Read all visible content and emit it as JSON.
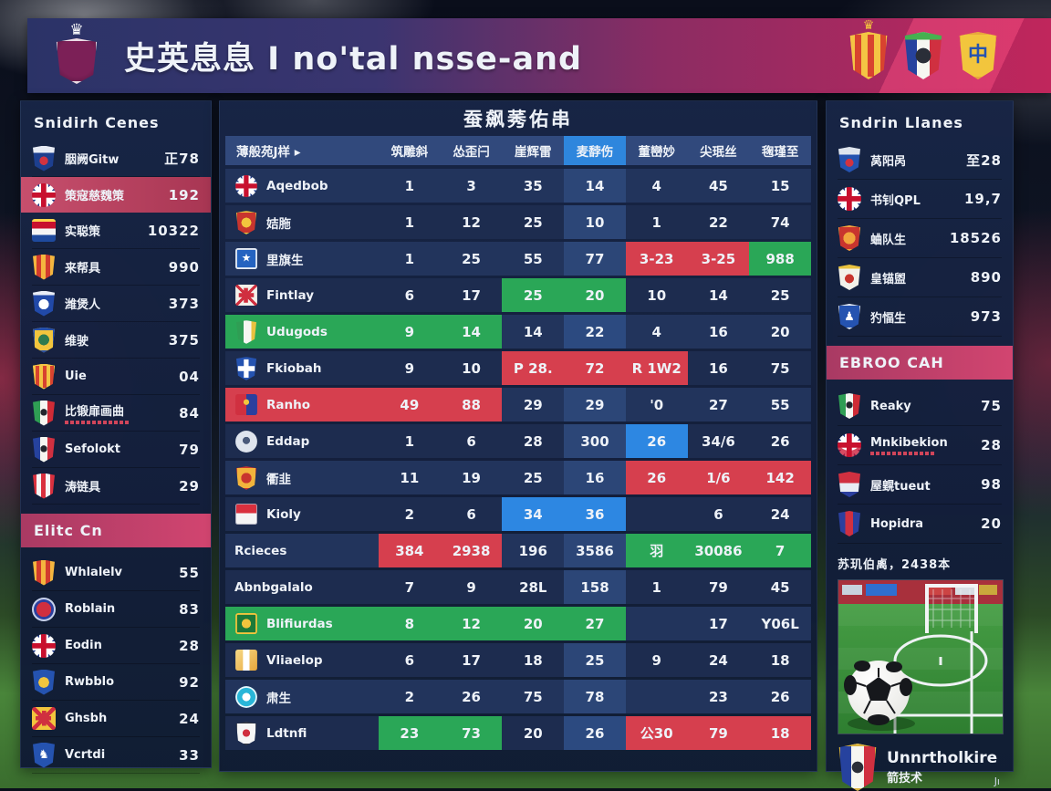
{
  "header": {
    "title": "史英息息 I no'tal nsse-and",
    "crests": [
      "striped-crown-crest-icon",
      "tricolor-green-crest-icon",
      "gold-blue-crest-icon"
    ]
  },
  "left_sidebar": {
    "section1_title": "Snidirh Cenes",
    "section1_items": [
      {
        "icon": "eagle-crest-icon",
        "name": "胭阙Gitw",
        "value": "正78"
      },
      {
        "icon": "union-jack-icon",
        "name": "策寇慈魏策",
        "value": "192",
        "highlighted": true
      },
      {
        "icon": "netherlands-flag-icon",
        "name": "实聪策",
        "value": "10322"
      },
      {
        "icon": "gold-red-crest-icon",
        "name": "来帮具",
        "value": "990"
      },
      {
        "icon": "blue-white-crest-icon",
        "name": "潍煲人",
        "value": "373"
      },
      {
        "icon": "yellow-blue-crest-icon",
        "name": "维驶",
        "value": "375"
      },
      {
        "icon": "gold-stripes-crest-icon",
        "name": "Uie",
        "value": "04"
      },
      {
        "icon": "italy-crest-icon",
        "name": "比锻扉画曲",
        "value": "84",
        "sub": true
      },
      {
        "icon": "france-crest-icon",
        "name": "Sefolokt",
        "value": "79"
      },
      {
        "icon": "red-white-stripes-crest-icon",
        "name": "涛链具",
        "value": "29"
      }
    ],
    "section2_title": "Elitc Cn",
    "section2_items": [
      {
        "icon": "gold-red-crest-icon",
        "name": "Whlalelv",
        "value": "55"
      },
      {
        "icon": "red-blue-circle-icon",
        "name": "Roblain",
        "value": "83"
      },
      {
        "icon": "union-jack-icon",
        "name": "Eodin",
        "value": "28"
      },
      {
        "icon": "blue-gold-crest-icon",
        "name": "Rwbblo",
        "value": "92"
      },
      {
        "icon": "yellow-cross-crest-icon",
        "name": "Ghsbh",
        "value": "24"
      },
      {
        "icon": "blue-horse-crest-icon",
        "name": "Vcrtdi",
        "value": "33"
      }
    ]
  },
  "table": {
    "title": "蚕飙莠佑串",
    "columns": [
      "薄般苑J样 ▸",
      "筑雕斜",
      "怂歪闩",
      "崖辉雷",
      "麦馞伤",
      "董巒妙",
      "尖珉丝",
      "毱瑾至"
    ],
    "active_column": 4,
    "rows": [
      {
        "icon": "union-jack-icon",
        "team": "Aqedbob",
        "cells": [
          {
            "v": "1"
          },
          {
            "v": "3"
          },
          {
            "v": "35"
          },
          {
            "v": "14"
          },
          {
            "v": "4"
          },
          {
            "v": "45"
          },
          {
            "v": "15"
          }
        ]
      },
      {
        "icon": "red-gold-crest-icon",
        "team": "姞胣",
        "cells": [
          {
            "v": "1"
          },
          {
            "v": "12"
          },
          {
            "v": "25"
          },
          {
            "v": "10"
          },
          {
            "v": "1"
          },
          {
            "v": "22"
          },
          {
            "v": "74"
          }
        ]
      },
      {
        "icon": "blue-star-crest-icon",
        "team": "里旗生",
        "cells": [
          {
            "v": "1"
          },
          {
            "v": "25"
          },
          {
            "v": "55"
          },
          {
            "v": "77"
          },
          {
            "v": "3-23",
            "bg": "red"
          },
          {
            "v": "3-25",
            "bg": "red"
          },
          {
            "v": "988",
            "bg": "green"
          }
        ]
      },
      {
        "icon": "red-cross-crest-icon",
        "team": "Fintlay",
        "cells": [
          {
            "v": "6"
          },
          {
            "v": "17"
          },
          {
            "v": "25",
            "bg": "green"
          },
          {
            "v": "20",
            "bg": "green"
          },
          {
            "v": "10"
          },
          {
            "v": "14"
          },
          {
            "v": "25"
          }
        ]
      },
      {
        "icon": "green-tricolor-crest-icon",
        "team": "Udugods",
        "team_bg": "green",
        "cells": [
          {
            "v": "9",
            "bg": "green"
          },
          {
            "v": "14",
            "bg": "green"
          },
          {
            "v": "14"
          },
          {
            "v": "22",
            "bg": "dark"
          },
          {
            "v": "4"
          },
          {
            "v": "16"
          },
          {
            "v": "20"
          }
        ]
      },
      {
        "icon": "blue-cross-crest-icon",
        "team": "Fkiobah",
        "cells": [
          {
            "v": "9"
          },
          {
            "v": "10"
          },
          {
            "v": "P 28.",
            "bg": "red"
          },
          {
            "v": "72",
            "bg": "red"
          },
          {
            "v": "R 1W2",
            "bg": "red"
          },
          {
            "v": "16"
          },
          {
            "v": "75"
          }
        ]
      },
      {
        "icon": "red-blue-crest-icon",
        "team": "Ranho",
        "team_bg": "red",
        "cells": [
          {
            "v": "49",
            "bg": "red"
          },
          {
            "v": "88",
            "bg": "red"
          },
          {
            "v": "29"
          },
          {
            "v": "29"
          },
          {
            "v": "'0"
          },
          {
            "v": "27"
          },
          {
            "v": "55"
          }
        ]
      },
      {
        "icon": "pale-badge-icon",
        "team": "Eddap",
        "cells": [
          {
            "v": "1"
          },
          {
            "v": "6"
          },
          {
            "v": "28"
          },
          {
            "v": "300"
          },
          {
            "v": "26",
            "bg": "blue"
          },
          {
            "v": "34/6"
          },
          {
            "v": "26"
          }
        ]
      },
      {
        "icon": "lion-crest-icon",
        "team": "衢韭",
        "cells": [
          {
            "v": "11"
          },
          {
            "v": "19"
          },
          {
            "v": "25"
          },
          {
            "v": "16"
          },
          {
            "v": "26",
            "bg": "red"
          },
          {
            "v": "1/6",
            "bg": "red"
          },
          {
            "v": "142",
            "bg": "red"
          }
        ]
      },
      {
        "icon": "red-white-flag-icon",
        "team": "Kioly",
        "cells": [
          {
            "v": "2"
          },
          {
            "v": "6"
          },
          {
            "v": "34",
            "bg": "blue"
          },
          {
            "v": "36",
            "bg": "blue"
          },
          {
            "v": ""
          },
          {
            "v": "6"
          },
          {
            "v": "24"
          }
        ]
      },
      {
        "icon": null,
        "team": "Rcieces",
        "cells": [
          {
            "v": "384",
            "bg": "red"
          },
          {
            "v": "2938",
            "bg": "red"
          },
          {
            "v": "196"
          },
          {
            "v": "3586"
          },
          {
            "v": "羽",
            "bg": "green"
          },
          {
            "v": "30086",
            "bg": "green"
          },
          {
            "v": "7",
            "bg": "green"
          }
        ]
      },
      {
        "icon": null,
        "team": "Abnbgalalo",
        "cells": [
          {
            "v": "7"
          },
          {
            "v": "9"
          },
          {
            "v": "28L"
          },
          {
            "v": "158"
          },
          {
            "v": "1"
          },
          {
            "v": "79"
          },
          {
            "v": "45"
          }
        ]
      },
      {
        "icon": "green-gold-crest-icon",
        "team": "Blifiurdas",
        "team_bg": "green",
        "cells": [
          {
            "v": "8",
            "bg": "green"
          },
          {
            "v": "12",
            "bg": "green"
          },
          {
            "v": "20",
            "bg": "green"
          },
          {
            "v": "27",
            "bg": "green"
          },
          {
            "v": ""
          },
          {
            "v": "17"
          },
          {
            "v": "Y06L"
          }
        ]
      },
      {
        "icon": "gold-cube-crest-icon",
        "team": "Vliaelop",
        "cells": [
          {
            "v": "6"
          },
          {
            "v": "17"
          },
          {
            "v": "18"
          },
          {
            "v": "25"
          },
          {
            "v": "9"
          },
          {
            "v": "24"
          },
          {
            "v": "18"
          }
        ]
      },
      {
        "icon": "cyan-circle-crest-icon",
        "team": "肃生",
        "cells": [
          {
            "v": "2"
          },
          {
            "v": "26"
          },
          {
            "v": "75"
          },
          {
            "v": "78"
          },
          {
            "v": ""
          },
          {
            "v": "23"
          },
          {
            "v": "26"
          }
        ]
      },
      {
        "icon": "white-red-crest-icon",
        "team": "Ldtnfi",
        "cells": [
          {
            "v": "23",
            "bg": "green"
          },
          {
            "v": "73",
            "bg": "green"
          },
          {
            "v": "20"
          },
          {
            "v": "26",
            "bg": "dark"
          },
          {
            "v": "公30",
            "bg": "red"
          },
          {
            "v": "79",
            "bg": "red"
          },
          {
            "v": "18",
            "bg": "red"
          }
        ]
      }
    ]
  },
  "right_sidebar": {
    "section1_title": "Sndrin Llanes",
    "section1_items": [
      {
        "icon": "blue-banner-crest-icon",
        "name": "莴阳呙",
        "value": "至28"
      },
      {
        "icon": "union-jack-icon",
        "name": "书钊QPL",
        "value": "19,7"
      },
      {
        "icon": "red-orange-crest-icon",
        "name": "蛐队生",
        "value": "18526"
      },
      {
        "icon": "white-red-crown-crest-icon",
        "name": "皇锚盥",
        "value": "890"
      },
      {
        "icon": "blue-figure-crest-icon",
        "name": "犳愊生",
        "value": "973"
      }
    ],
    "section2_title": "EBROO CAH",
    "section2_items": [
      {
        "icon": "italy-crest-icon",
        "name": "Reaky",
        "value": "75"
      },
      {
        "icon": "uk-circle-crest-icon",
        "name": "Mnkibekion",
        "value": "28",
        "sub": true
      },
      {
        "icon": "castle-crest-icon",
        "name": "屋皩tueut",
        "value": "98"
      },
      {
        "icon": "blue-red-half-crest-icon",
        "name": "Hopidra",
        "value": "20"
      }
    ]
  },
  "promo": {
    "caption": "苏玑伯禼，2438本",
    "team": "Unnrtholkire",
    "subtitle": "箭技术",
    "corner": "Jı",
    "crest": "france-gold-crest-icon"
  },
  "colors": {
    "accent_pink": "#c2275f",
    "green": "#2aa757",
    "red": "#d63f4e",
    "blue": "#2d87e2",
    "panel": "#1b2a4e"
  }
}
